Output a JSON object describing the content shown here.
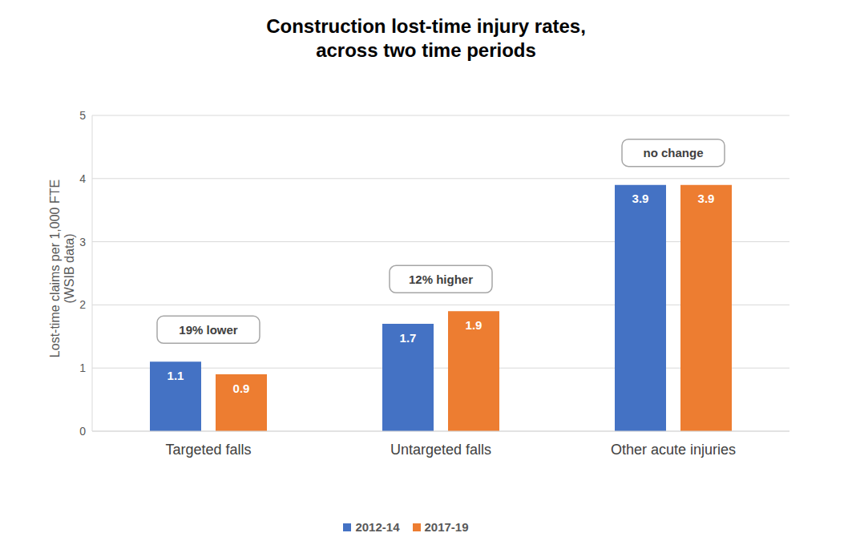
{
  "chart_data": {
    "type": "bar",
    "title": "Construction lost-time injury rates,\nacross two time periods",
    "ylabel": "Lost-time claims per 1,000 FTE\n(WSIB data)",
    "categories": [
      "Targeted falls",
      "Untargeted falls",
      "Other acute injuries"
    ],
    "series": [
      {
        "name": "2012-14",
        "color": "#4472c4",
        "values": [
          1.1,
          1.7,
          3.9
        ]
      },
      {
        "name": "2017-19",
        "color": "#ed7d31",
        "values": [
          0.9,
          1.9,
          3.9
        ]
      }
    ],
    "annotations": [
      "19% lower",
      "12% higher",
      "no change"
    ],
    "ylim": [
      0,
      5
    ],
    "yticks": [
      0,
      1,
      2,
      3,
      4,
      5
    ],
    "grid": true,
    "data_labels": true,
    "legend": "bottom"
  }
}
